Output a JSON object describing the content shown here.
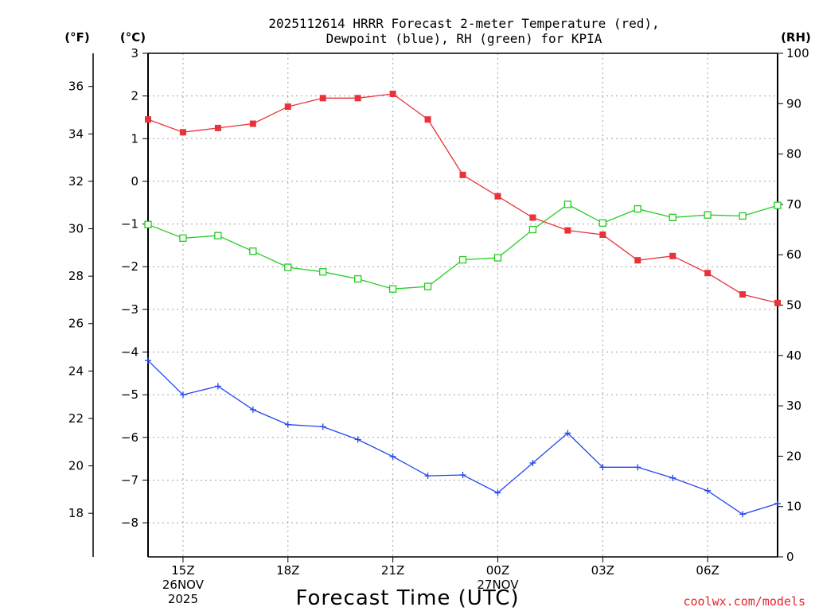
{
  "chart_data": {
    "type": "line",
    "title_lines": [
      "2025112614 HRRR Forecast 2-meter Temperature (red),",
      "Dewpoint (blue), RH (green) for KPIA"
    ],
    "xlabel": "Forecast Time (UTC)",
    "credit": "coolwx.com/models",
    "units": {
      "fahrenheit": "(°F)",
      "celsius": "(°C)",
      "rh": "(RH)"
    },
    "hours": [
      14,
      15,
      16,
      17,
      18,
      19,
      20,
      21,
      22,
      23,
      24,
      25,
      26,
      27,
      28,
      29,
      30,
      31,
      32
    ],
    "x_ticks": [
      {
        "hour": 15,
        "labels": [
          "15Z",
          "26NOV",
          "2025"
        ]
      },
      {
        "hour": 18,
        "labels": [
          "18Z"
        ]
      },
      {
        "hour": 21,
        "labels": [
          "21Z"
        ]
      },
      {
        "hour": 24,
        "labels": [
          "00Z",
          "27NOV"
        ]
      },
      {
        "hour": 27,
        "labels": [
          "03Z"
        ]
      },
      {
        "hour": 30,
        "labels": [
          "06Z"
        ]
      }
    ],
    "celsius_axis": {
      "range": [
        -8.8,
        3.0
      ],
      "ticks": [
        "3",
        "2",
        "1",
        "0",
        "−1",
        "−2",
        "−3",
        "−4",
        "−5",
        "−6",
        "−7",
        "−8"
      ],
      "tick_values": [
        3,
        2,
        1,
        0,
        -1,
        -2,
        -3,
        -4,
        -5,
        -6,
        -7,
        -8
      ]
    },
    "fahrenheit_axis": {
      "ticks": [
        "36",
        "34",
        "32",
        "30",
        "28",
        "26",
        "24",
        "22",
        "20",
        "18"
      ],
      "tick_values": [
        36,
        34,
        32,
        30,
        28,
        26,
        24,
        22,
        20,
        18
      ]
    },
    "rh_axis": {
      "range": [
        0,
        100
      ],
      "ticks": [
        "100",
        "90",
        "80",
        "70",
        "60",
        "50",
        "40",
        "30",
        "20",
        "10",
        "0"
      ],
      "tick_values": [
        100,
        90,
        80,
        70,
        60,
        50,
        40,
        30,
        20,
        10,
        0
      ]
    },
    "series": [
      {
        "name": "2-meter Temperature",
        "unit": "C",
        "color": "#e8333a",
        "marker": "filled-square",
        "values": [
          1.45,
          1.15,
          1.25,
          1.35,
          1.75,
          1.95,
          1.95,
          2.05,
          1.45,
          0.15,
          -0.35,
          -0.85,
          -1.15,
          -1.25,
          -1.85,
          -1.75,
          -2.15,
          -2.65,
          -2.85
        ]
      },
      {
        "name": "Dewpoint",
        "unit": "C",
        "color": "#2244ee",
        "marker": "plus",
        "values": [
          -4.2,
          -5.0,
          -4.8,
          -5.35,
          -5.7,
          -5.75,
          -6.05,
          -6.45,
          -6.9,
          -6.88,
          -7.3,
          -6.6,
          -5.9,
          -6.7,
          -6.7,
          -6.95,
          -7.25,
          -7.8,
          -7.55
        ]
      },
      {
        "name": "RH",
        "unit": "%",
        "color": "#22cc22",
        "marker": "open-square",
        "values": [
          66,
          63.3,
          63.8,
          60.7,
          57.5,
          56.6,
          55.2,
          53.2,
          53.7,
          59,
          59.4,
          65,
          70,
          66.3,
          69.1,
          67.4,
          67.9,
          67.7,
          69.8
        ]
      }
    ]
  }
}
